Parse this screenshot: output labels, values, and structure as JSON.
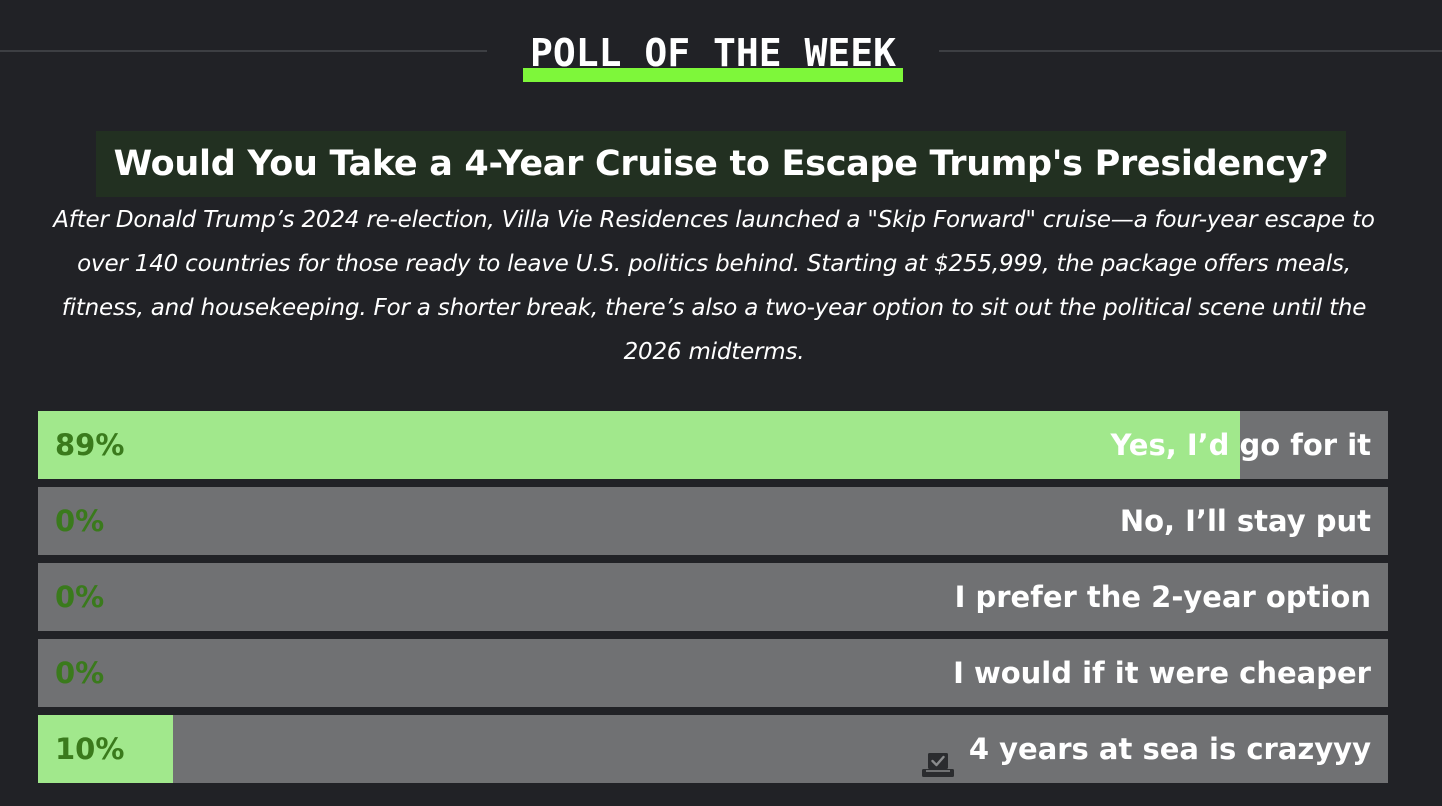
{
  "section": {
    "title": "POLL OF THE WEEK"
  },
  "poll": {
    "question": "Would You Take a 4-Year Cruise to Escape Trump's Presidency?",
    "description": "After Donald Trump’s 2024 re-election, Villa Vie Residences launched a \"Skip Forward\" cruise—a four-year escape to over 140 countries for those ready to leave U.S. politics behind. Starting at $255,999, the package offers meals, fitness, and housekeeping. For a shorter break, there’s also a two-year option to sit out the political scene until the 2026 midterms.",
    "options": [
      {
        "percent_label": "89%",
        "percent": 89,
        "label": "Yes, I’d go for it",
        "voted": false
      },
      {
        "percent_label": "0%",
        "percent": 0,
        "label": "No, I’ll stay put",
        "voted": false
      },
      {
        "percent_label": "0%",
        "percent": 0,
        "label": "I prefer the 2-year option",
        "voted": false
      },
      {
        "percent_label": "0%",
        "percent": 0,
        "label": "I would if it were cheaper",
        "voted": false
      },
      {
        "percent_label": "10%",
        "percent": 10,
        "label": "4 years at sea is crazyyy",
        "voted": true,
        "icon": "ballot-box-icon"
      }
    ],
    "colors": {
      "background": "#212226",
      "bar_empty": "#707173",
      "bar_fill": "#a1e88c",
      "percent_text": "#3a7a1c",
      "accent": "#7ef73a",
      "question_bg": "#223021"
    }
  }
}
